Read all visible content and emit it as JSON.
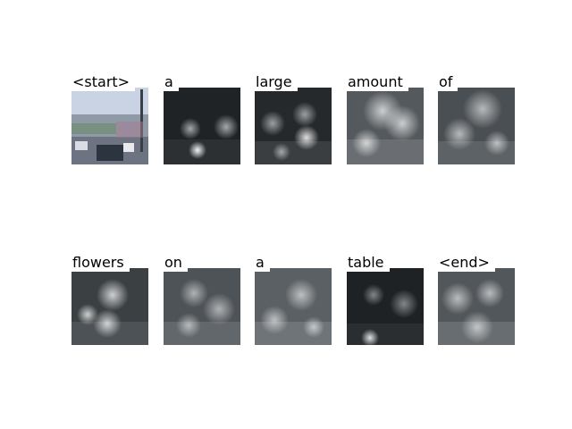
{
  "tokens": [
    {
      "word": "<start>",
      "kind": "photo"
    },
    {
      "word": "a",
      "kind": "attention"
    },
    {
      "word": "large",
      "kind": "attention"
    },
    {
      "word": "amount",
      "kind": "attention"
    },
    {
      "word": "of",
      "kind": "attention"
    },
    {
      "word": "flowers",
      "kind": "attention"
    },
    {
      "word": "on",
      "kind": "attention"
    },
    {
      "word": "a",
      "kind": "attention"
    },
    {
      "word": "table",
      "kind": "attention"
    },
    {
      "word": "<end>",
      "kind": "attention"
    }
  ]
}
